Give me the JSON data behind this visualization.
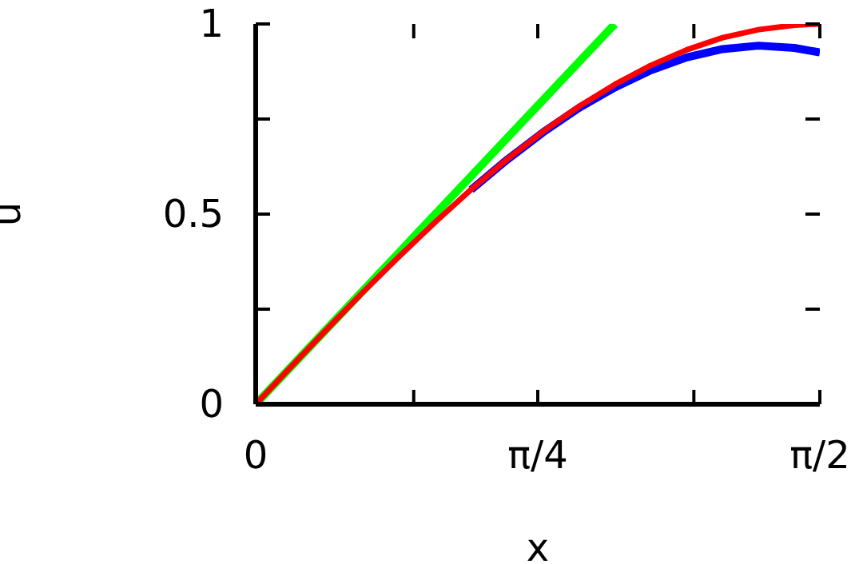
{
  "chart_data": {
    "type": "line",
    "xlabel": "x",
    "ylabel": "u",
    "xlim": [
      0,
      1.5708
    ],
    "ylim": [
      0,
      1
    ],
    "xticks": [
      0,
      {
        "value": 0.44,
        "label": null
      },
      {
        "value": 0.7854,
        "label": "π/4"
      },
      {
        "value": 1.22,
        "label": null
      },
      {
        "value": 1.5708,
        "label": "π/2"
      }
    ],
    "yticks": [
      0,
      {
        "value": 0.25,
        "label": null
      },
      0.5,
      {
        "value": 0.75,
        "label": null
      },
      1
    ],
    "grid": false,
    "legend": false,
    "marker": "none",
    "line_style": "solid",
    "series": [
      {
        "color": "#00ff00",
        "x": [
          0,
          0.2,
          0.4,
          0.6,
          0.8,
          1.0
        ],
        "values": [
          0,
          0.2,
          0.4,
          0.6,
          0.8,
          1.0
        ]
      },
      {
        "color": "#0000ff",
        "x": [
          0.6,
          0.7,
          0.8,
          0.9,
          1.0,
          1.1,
          1.2,
          1.3,
          1.4,
          1.5,
          1.5708
        ],
        "values": [
          0.564,
          0.643,
          0.715,
          0.779,
          0.833,
          0.878,
          0.912,
          0.934,
          0.943,
          0.937,
          0.925
        ]
      },
      {
        "color": "#ff0000",
        "x": [
          0,
          0.1,
          0.2,
          0.3,
          0.4,
          0.5,
          0.6,
          0.7,
          0.8,
          0.9,
          1.0,
          1.1,
          1.2,
          1.3,
          1.4,
          1.5,
          1.5708
        ],
        "values": [
          0,
          0.1,
          0.199,
          0.296,
          0.389,
          0.479,
          0.565,
          0.644,
          0.717,
          0.783,
          0.841,
          0.891,
          0.932,
          0.964,
          0.985,
          0.997,
          1.0
        ]
      }
    ]
  }
}
